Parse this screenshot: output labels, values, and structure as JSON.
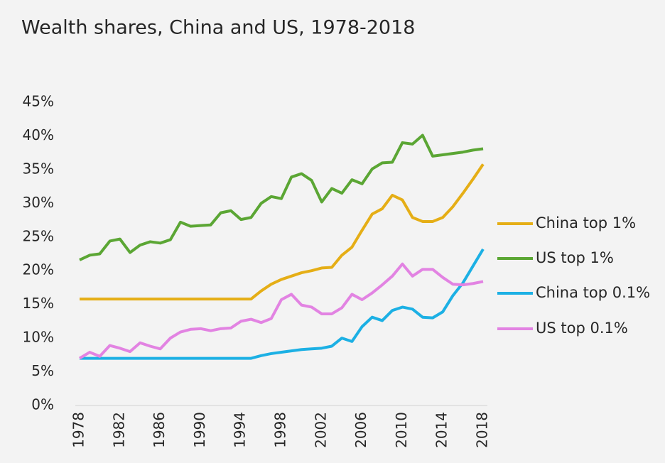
{
  "chart_data": {
    "type": "line",
    "title": "Wealth shares, China and US, 1978-2018",
    "x": [
      1978,
      1979,
      1980,
      1981,
      1982,
      1983,
      1984,
      1985,
      1986,
      1987,
      1988,
      1989,
      1990,
      1991,
      1992,
      1993,
      1994,
      1995,
      1996,
      1997,
      1998,
      1999,
      2000,
      2001,
      2002,
      2003,
      2004,
      2005,
      2006,
      2007,
      2008,
      2009,
      2010,
      2011,
      2012,
      2013,
      2014,
      2015,
      2016,
      2017,
      2018
    ],
    "xlim": [
      1978,
      2018
    ],
    "xticks": [
      1978,
      1982,
      1986,
      1990,
      1994,
      1998,
      2002,
      2006,
      2010,
      2014,
      2018
    ],
    "ylim": [
      0,
      45
    ],
    "yticks": [
      {
        "value": 0,
        "label": "0%"
      },
      {
        "value": 5,
        "label": "5%"
      },
      {
        "value": 10,
        "label": "10%"
      },
      {
        "value": 15,
        "label": "15%"
      },
      {
        "value": 20,
        "label": "20%"
      },
      {
        "value": 25,
        "label": "25%"
      },
      {
        "value": 30,
        "label": "30%"
      },
      {
        "value": 35,
        "label": "35%"
      },
      {
        "value": 40,
        "label": "40%"
      },
      {
        "value": 45,
        "label": "45%"
      }
    ],
    "grid": false,
    "legend": "right",
    "series": [
      {
        "name": "China top 1%",
        "color": "#e5ae16",
        "values": [
          15.8,
          15.8,
          15.8,
          15.8,
          15.8,
          15.8,
          15.8,
          15.8,
          15.8,
          15.8,
          15.8,
          15.8,
          15.8,
          15.8,
          15.8,
          15.8,
          15.8,
          15.8,
          17,
          18,
          18.7,
          19.2,
          19.7,
          20,
          20.4,
          20.5,
          22.3,
          23.5,
          26,
          28.4,
          29.2,
          31.2,
          30.5,
          27.9,
          27.3,
          27.3,
          27.9,
          29.5,
          31.5,
          33.6,
          35.8
        ]
      },
      {
        "name": "US top 1%",
        "color": "#5ba634",
        "values": [
          21.6,
          22.3,
          22.5,
          24.4,
          24.7,
          22.7,
          23.8,
          24.3,
          24.1,
          24.6,
          27.2,
          26.6,
          26.7,
          26.8,
          28.6,
          28.9,
          27.6,
          27.9,
          30,
          31,
          30.7,
          33.9,
          34.4,
          33.4,
          30.2,
          32.2,
          31.5,
          33.5,
          32.9,
          35.1,
          36,
          36.1,
          39,
          38.8,
          40.1,
          37,
          37.2,
          37.4,
          37.6,
          37.9,
          38.1
        ]
      },
      {
        "name": "China top 0.1%",
        "color": "#1cb0e4",
        "values": [
          7,
          7,
          7,
          7,
          7,
          7,
          7,
          7,
          7,
          7,
          7,
          7,
          7,
          7,
          7,
          7,
          7,
          7,
          7.4,
          7.7,
          7.9,
          8.1,
          8.3,
          8.4,
          8.5,
          8.8,
          10,
          9.5,
          11.7,
          13.1,
          12.6,
          14.1,
          14.6,
          14.3,
          13.1,
          13,
          13.9,
          16.3,
          18.2,
          20.7,
          23.2
        ]
      },
      {
        "name": "US top 0.1%",
        "color": "#e283e2",
        "values": [
          7,
          7.9,
          7.3,
          8.9,
          8.5,
          8,
          9.3,
          8.8,
          8.4,
          10,
          10.9,
          11.3,
          11.4,
          11.1,
          11.4,
          11.5,
          12.5,
          12.8,
          12.3,
          12.9,
          15.7,
          16.5,
          14.9,
          14.6,
          13.6,
          13.6,
          14.5,
          16.5,
          15.7,
          16.7,
          17.9,
          19.2,
          21,
          19.2,
          20.2,
          20.2,
          19,
          18,
          17.9,
          18.1,
          18.4
        ]
      }
    ]
  }
}
